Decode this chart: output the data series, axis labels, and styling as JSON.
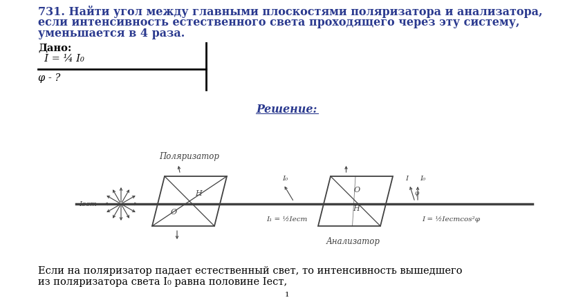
{
  "bg_color": "#ffffff",
  "title_number": "731.",
  "title_text1": " Найти угол между главными плоскостями поляризатора и анализатора,",
  "title_text2": "если интенсивность естественного света проходящего через эту систему,",
  "title_text3": "уменьшается в 4 раза.",
  "given_label": "Дано:",
  "given_line1": "  I = ¼ I₀",
  "find_label": "φ - ?",
  "solution_label": "Решение:",
  "polarizer_label": "Поляризатор",
  "analyzer_label": "Анализатор",
  "I_est_label": "Iест",
  "I0_label1": "I₀",
  "I0_label2": "I₀",
  "I_label": "I",
  "phi_label": "φ",
  "H_label1": "H",
  "H_label2": "H",
  "O_label1": "O",
  "O_label2": "O",
  "I1_formula": "I₁ = ½Iест",
  "I_formula": "I = ½Iестcos²φ",
  "bottom_text1": "Если на поляризатор падает естественный свет, то интенсивность вышедшего",
  "bottom_text2": "из поляризатора света I₀ равна половине Iест,",
  "page_number": "1",
  "text_color": "#2b3a8f",
  "diagram_color": "#404040",
  "body_color": "#000000"
}
